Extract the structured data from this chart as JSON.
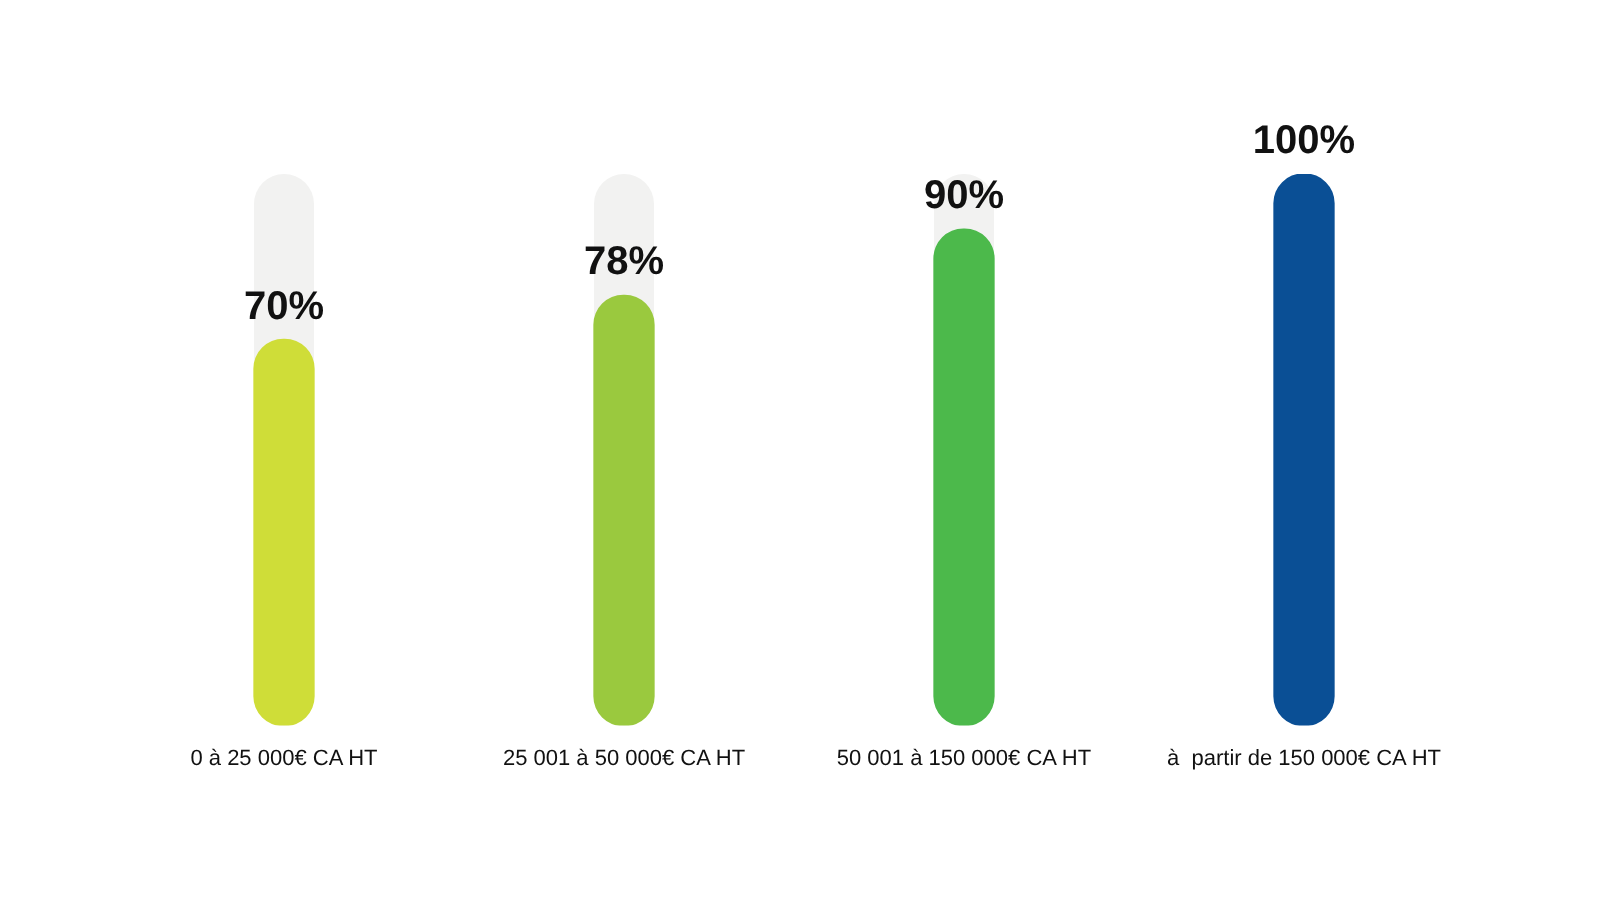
{
  "chart_data": {
    "type": "bar",
    "categories": [
      "0 à 25 000€ CA HT",
      "25 001 à 50 000€ CA HT",
      "50 001 à 150 000€ CA HT",
      "à  partir de 150 000€ CA HT"
    ],
    "values": [
      70,
      78,
      90,
      100
    ],
    "colors": [
      "#cfdd38",
      "#9ac93e",
      "#4cb94b",
      "#0a4f95"
    ],
    "ylim": [
      0,
      100
    ],
    "data_labels": true,
    "value_labels": [
      "70%",
      "78%",
      "90%",
      "100%"
    ],
    "grid": false,
    "legend": false
  }
}
